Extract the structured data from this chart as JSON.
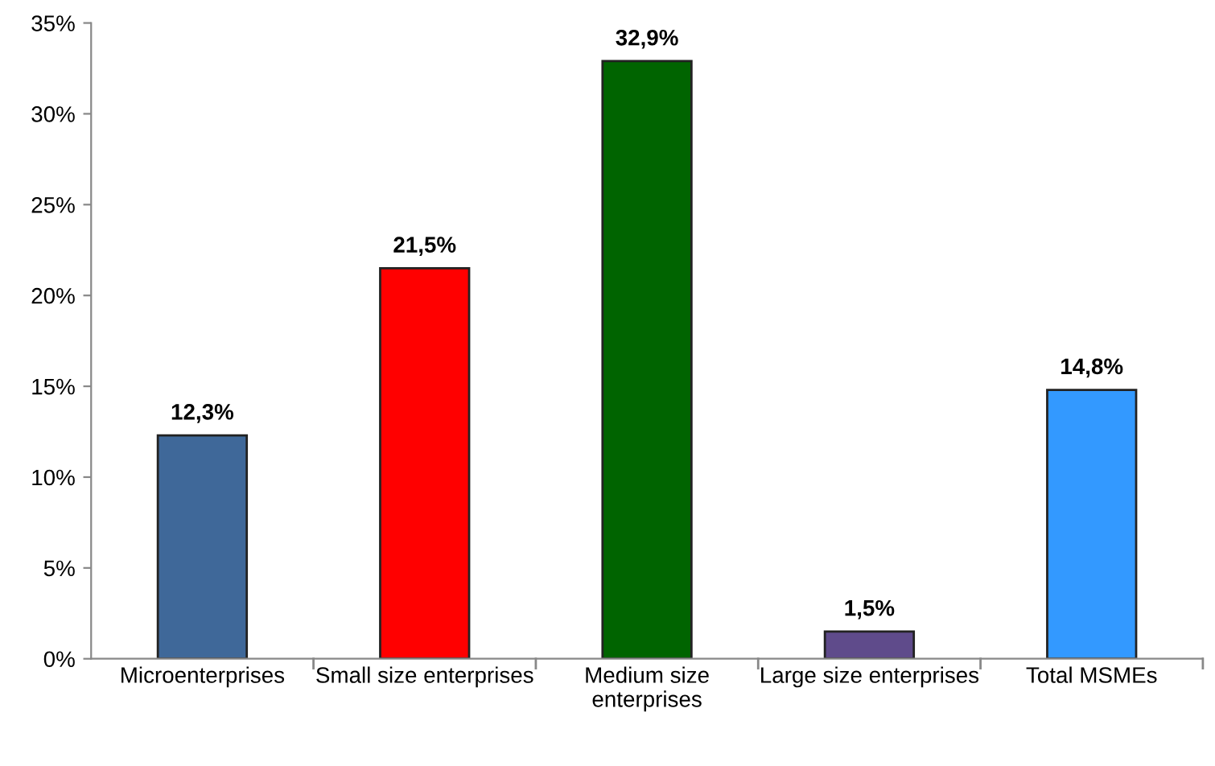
{
  "chart_data": {
    "type": "bar",
    "categories": [
      "Microenterprises",
      "Small size enterprises",
      "Medium size\nenterprises",
      "Large size enterprises",
      "Total MSMEs"
    ],
    "values": [
      12.3,
      21.5,
      32.9,
      1.5,
      14.8
    ],
    "colors": [
      "#3f6899",
      "#ff0000",
      "#006400",
      "#5f4b8b",
      "#3399ff"
    ],
    "value_labels": [
      "12,3%",
      "21,5%",
      "32,9%",
      "1,5%",
      "14,8%"
    ],
    "ylim": [
      0,
      35
    ],
    "yticks": [
      {
        "value": 0,
        "label": "0%"
      },
      {
        "value": 5,
        "label": "5%"
      },
      {
        "value": 10,
        "label": "10%"
      },
      {
        "value": 15,
        "label": "15%"
      },
      {
        "value": 20,
        "label": "20%"
      },
      {
        "value": 25,
        "label": "25%"
      },
      {
        "value": 30,
        "label": "30%"
      },
      {
        "value": 35,
        "label": "35%"
      }
    ],
    "grid": false,
    "legend": false
  }
}
